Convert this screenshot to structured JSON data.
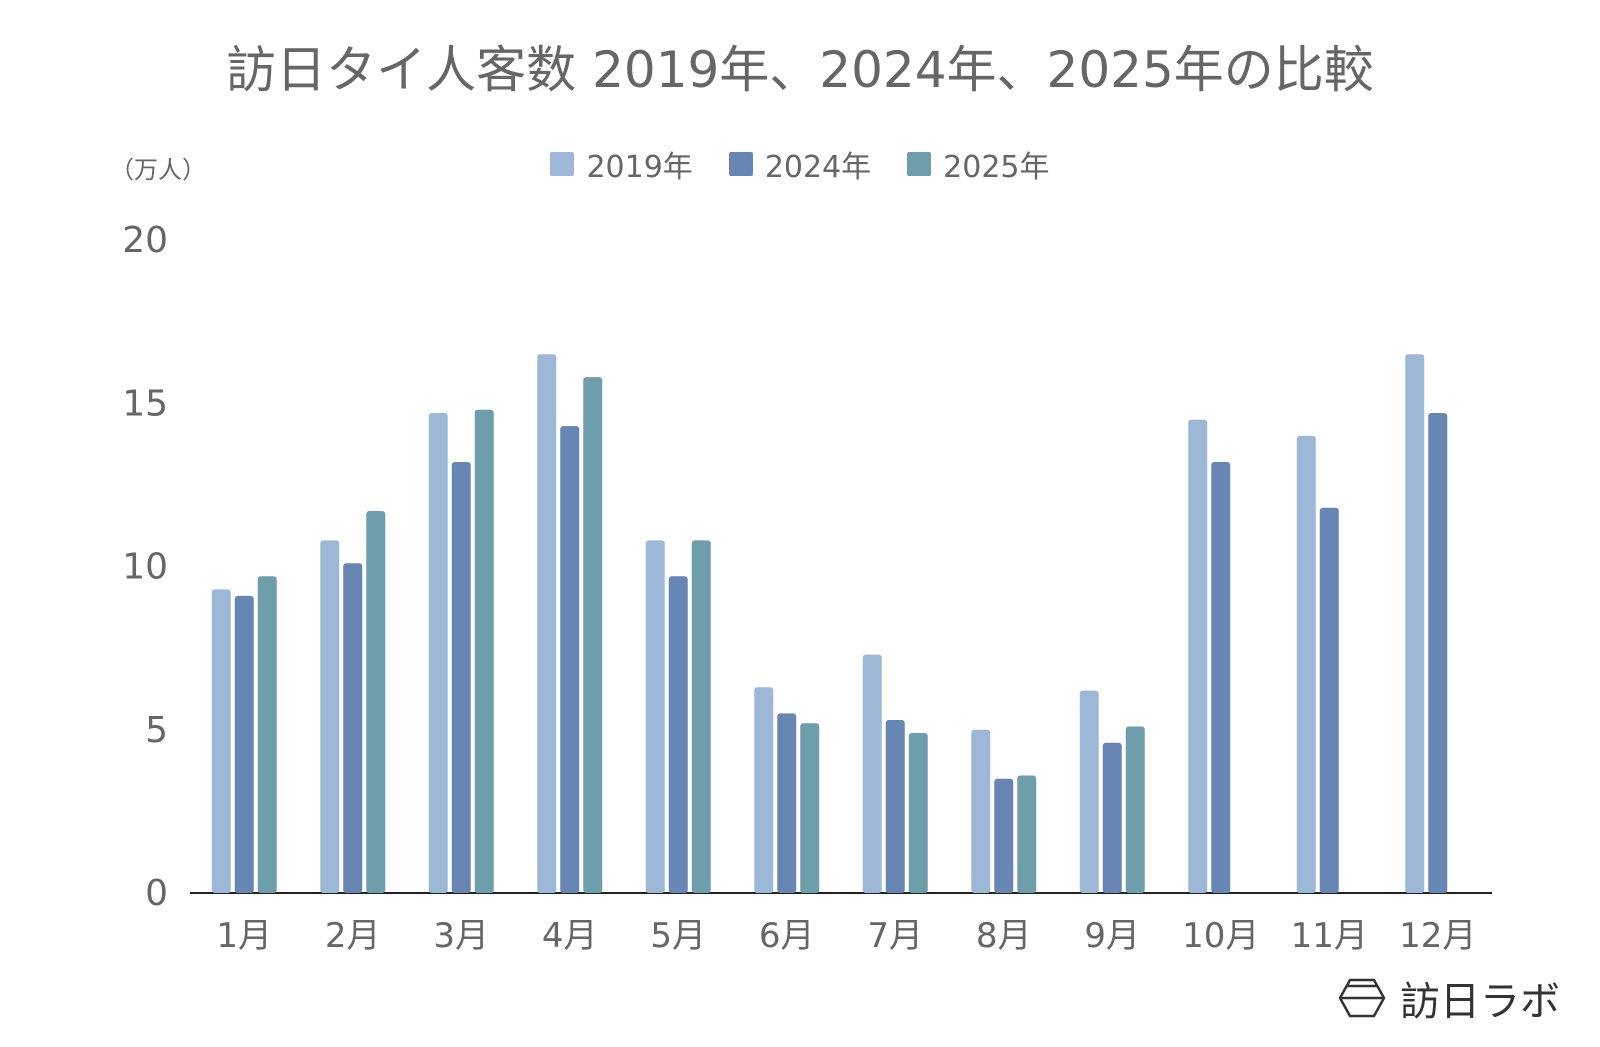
{
  "chart_data": {
    "type": "bar",
    "title": "訪日タイ人客数 2019年、2024年、2025年の比較",
    "ylabel": "（万人）",
    "xlabel": "",
    "ylim": [
      0,
      20
    ],
    "yticks": [
      "0",
      "5",
      "10",
      "15",
      "20"
    ],
    "grid": false,
    "legend_position": "top",
    "categories": [
      "1月",
      "2月",
      "3月",
      "4月",
      "5月",
      "6月",
      "7月",
      "8月",
      "9月",
      "10月",
      "11月",
      "12月"
    ],
    "series": [
      {
        "name": "2019年",
        "color": "#9db8d7",
        "values": [
          9.3,
          10.8,
          14.7,
          16.5,
          10.8,
          6.3,
          7.3,
          5.0,
          6.2,
          14.5,
          14.0,
          16.5
        ]
      },
      {
        "name": "2024年",
        "color": "#6886b4",
        "values": [
          9.1,
          10.1,
          13.2,
          14.3,
          9.7,
          5.5,
          5.3,
          3.5,
          4.6,
          13.2,
          11.8,
          14.7
        ]
      },
      {
        "name": "2025年",
        "color": "#6e9eab",
        "values": [
          9.7,
          11.7,
          14.8,
          15.8,
          10.8,
          5.2,
          4.9,
          3.6,
          5.1,
          null,
          null,
          null
        ]
      }
    ]
  },
  "logo": {
    "text": "訪日ラボ"
  }
}
